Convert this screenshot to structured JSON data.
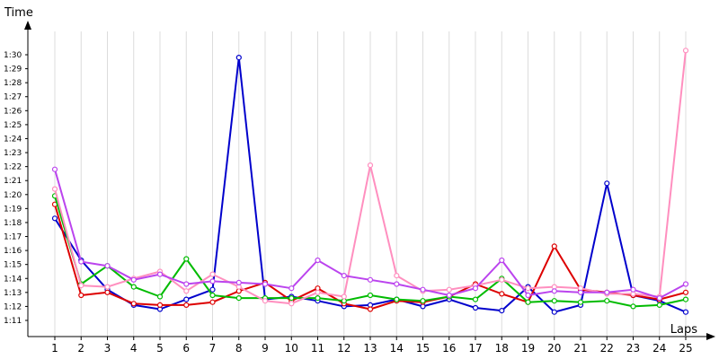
{
  "chart_data": {
    "type": "line",
    "xlabel": "Laps",
    "ylabel": "Time",
    "x": [
      1,
      2,
      3,
      4,
      5,
      6,
      7,
      8,
      9,
      10,
      11,
      12,
      13,
      14,
      15,
      16,
      17,
      18,
      19,
      20,
      21,
      22,
      23,
      24,
      25
    ],
    "ylim": [
      "1:11",
      "1:30"
    ],
    "ytick_labels": [
      "1:11",
      "1:12",
      "1:13",
      "1:14",
      "1:15",
      "1:16",
      "1:17",
      "1:18",
      "1:19",
      "1:20",
      "1:21",
      "1:22",
      "1:23",
      "1:24",
      "1:25",
      "1:26",
      "1:27",
      "1:28",
      "1:29",
      "1:30"
    ],
    "grid": true,
    "series": [
      {
        "color": "#0000cc",
        "values": [
          78.3,
          75.3,
          73.2,
          72.1,
          71.8,
          72.5,
          73.2,
          89.8,
          72.5,
          72.7,
          72.4,
          72.0,
          72.1,
          72.5,
          72.0,
          72.5,
          71.9,
          71.7,
          73.4,
          71.6,
          72.1,
          80.8,
          72.8,
          72.4,
          71.6
        ]
      },
      {
        "color": "#dd0000",
        "values": [
          79.3,
          72.8,
          73.0,
          72.2,
          72.1,
          72.1,
          72.3,
          73.1,
          73.7,
          72.4,
          73.3,
          72.2,
          71.8,
          72.4,
          72.3,
          72.7,
          73.6,
          72.9,
          72.3,
          76.3,
          73.2,
          73.0,
          72.8,
          72.5,
          73.0
        ]
      },
      {
        "color": "#00bb00",
        "values": [
          79.9,
          73.6,
          74.9,
          73.4,
          72.7,
          75.4,
          72.8,
          72.6,
          72.6,
          72.6,
          72.6,
          72.4,
          72.8,
          72.5,
          72.4,
          72.7,
          72.5,
          74.0,
          72.3,
          72.4,
          72.3,
          72.4,
          72.0,
          72.1,
          72.5
        ]
      },
      {
        "color": "#ff8fbf",
        "values": [
          80.4,
          73.5,
          73.4,
          74.0,
          74.5,
          73.1,
          74.3,
          73.4,
          72.4,
          72.2,
          73.0,
          72.7,
          82.1,
          74.2,
          73.1,
          73.2,
          73.5,
          73.9,
          73.3,
          73.4,
          73.3,
          72.9,
          72.9,
          72.7,
          90.3
        ]
      },
      {
        "color": "#bb44ee",
        "values": [
          81.8,
          75.2,
          74.9,
          73.9,
          74.3,
          73.6,
          73.8,
          73.7,
          73.6,
          73.3,
          75.3,
          74.2,
          73.9,
          73.6,
          73.2,
          72.8,
          73.3,
          75.3,
          72.8,
          73.1,
          73.0,
          73.0,
          73.2,
          72.6,
          73.6
        ]
      }
    ]
  }
}
